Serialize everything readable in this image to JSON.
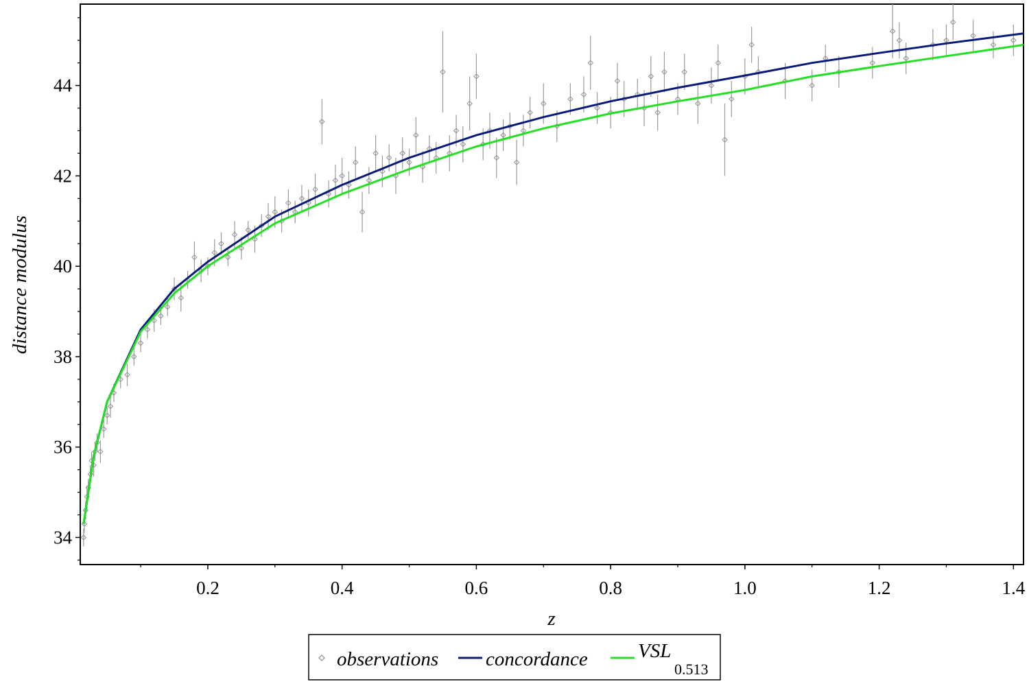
{
  "chart_data": {
    "type": "scatter",
    "title": "",
    "xlabel": "z",
    "ylabel": "distance modulus",
    "xlim": [
      0.01,
      1.415
    ],
    "ylim": [
      33.4,
      45.8
    ],
    "x_ticks": [
      0.2,
      0.4,
      0.6,
      0.8,
      1.0,
      1.2,
      1.4
    ],
    "x_tick_labels": [
      "0.2",
      "0.4",
      "0.6",
      "0.8",
      "1.0",
      "1.2",
      "1.4"
    ],
    "y_ticks": [
      34,
      36,
      38,
      40,
      42,
      44
    ],
    "y_tick_labels": [
      "34",
      "36",
      "38",
      "40",
      "42",
      "44"
    ],
    "grid": false,
    "legend_position": "bottom-center",
    "legend": {
      "observations": "observations",
      "concordance": "concordance",
      "vsl_main": "VSL",
      "vsl_sub": "0.513"
    },
    "colors": {
      "observations": "#999999",
      "concordance": "#0a1a78",
      "vsl": "#22e022"
    },
    "series": [
      {
        "name": "observations",
        "kind": "points-with-error-bars",
        "points": [
          [
            0.015,
            34.0,
            0.2
          ],
          [
            0.016,
            34.3,
            0.2
          ],
          [
            0.018,
            34.6,
            0.2
          ],
          [
            0.02,
            34.9,
            0.25
          ],
          [
            0.022,
            35.1,
            0.2
          ],
          [
            0.025,
            35.4,
            0.2
          ],
          [
            0.027,
            35.7,
            0.2
          ],
          [
            0.03,
            35.6,
            0.25
          ],
          [
            0.032,
            35.9,
            0.2
          ],
          [
            0.035,
            36.1,
            0.2
          ],
          [
            0.04,
            35.9,
            0.25
          ],
          [
            0.045,
            36.4,
            0.2
          ],
          [
            0.05,
            36.7,
            0.2
          ],
          [
            0.055,
            36.9,
            0.25
          ],
          [
            0.06,
            37.2,
            0.2
          ],
          [
            0.07,
            37.5,
            0.2
          ],
          [
            0.08,
            37.6,
            0.25
          ],
          [
            0.09,
            38.0,
            0.2
          ],
          [
            0.1,
            38.3,
            0.2
          ],
          [
            0.11,
            38.6,
            0.2
          ],
          [
            0.12,
            38.8,
            0.25
          ],
          [
            0.13,
            38.9,
            0.2
          ],
          [
            0.14,
            39.1,
            0.2
          ],
          [
            0.15,
            39.5,
            0.25
          ],
          [
            0.16,
            39.3,
            0.3
          ],
          [
            0.17,
            39.7,
            0.2
          ],
          [
            0.18,
            40.2,
            0.35
          ],
          [
            0.19,
            39.9,
            0.25
          ],
          [
            0.2,
            40.0,
            0.2
          ],
          [
            0.21,
            40.3,
            0.3
          ],
          [
            0.22,
            40.5,
            0.25
          ],
          [
            0.23,
            40.2,
            0.2
          ],
          [
            0.24,
            40.7,
            0.3
          ],
          [
            0.25,
            40.4,
            0.25
          ],
          [
            0.26,
            40.8,
            0.2
          ],
          [
            0.27,
            40.6,
            0.3
          ],
          [
            0.28,
            40.9,
            0.25
          ],
          [
            0.29,
            41.1,
            0.3
          ],
          [
            0.3,
            41.2,
            0.35
          ],
          [
            0.31,
            41.0,
            0.25
          ],
          [
            0.32,
            41.4,
            0.3
          ],
          [
            0.33,
            41.2,
            0.25
          ],
          [
            0.34,
            41.5,
            0.3
          ],
          [
            0.35,
            41.4,
            0.3
          ],
          [
            0.36,
            41.7,
            0.35
          ],
          [
            0.37,
            43.2,
            0.5
          ],
          [
            0.38,
            41.6,
            0.3
          ],
          [
            0.39,
            41.9,
            0.35
          ],
          [
            0.4,
            42.0,
            0.4
          ],
          [
            0.41,
            41.8,
            0.3
          ],
          [
            0.42,
            42.3,
            0.35
          ],
          [
            0.43,
            41.2,
            0.45
          ],
          [
            0.44,
            41.9,
            0.3
          ],
          [
            0.45,
            42.5,
            0.4
          ],
          [
            0.46,
            42.1,
            0.35
          ],
          [
            0.47,
            42.4,
            0.3
          ],
          [
            0.48,
            42.0,
            0.4
          ],
          [
            0.49,
            42.5,
            0.35
          ],
          [
            0.5,
            42.3,
            0.3
          ],
          [
            0.51,
            42.9,
            0.4
          ],
          [
            0.52,
            42.2,
            0.35
          ],
          [
            0.53,
            42.6,
            0.3
          ],
          [
            0.54,
            42.4,
            0.35
          ],
          [
            0.55,
            44.3,
            0.9
          ],
          [
            0.56,
            42.5,
            0.4
          ],
          [
            0.57,
            43.0,
            0.35
          ],
          [
            0.58,
            42.7,
            0.4
          ],
          [
            0.59,
            43.6,
            0.6
          ],
          [
            0.6,
            44.2,
            0.5
          ],
          [
            0.61,
            42.7,
            0.35
          ],
          [
            0.62,
            43.0,
            0.4
          ],
          [
            0.63,
            42.4,
            0.45
          ],
          [
            0.64,
            42.9,
            0.35
          ],
          [
            0.65,
            43.1,
            0.3
          ],
          [
            0.66,
            42.3,
            0.5
          ],
          [
            0.67,
            43.0,
            0.35
          ],
          [
            0.68,
            43.4,
            0.35
          ],
          [
            0.7,
            43.6,
            0.45
          ],
          [
            0.72,
            43.1,
            0.35
          ],
          [
            0.74,
            43.7,
            0.35
          ],
          [
            0.76,
            43.8,
            0.4
          ],
          [
            0.77,
            44.5,
            0.6
          ],
          [
            0.78,
            43.5,
            0.35
          ],
          [
            0.8,
            43.4,
            0.35
          ],
          [
            0.81,
            44.1,
            0.4
          ],
          [
            0.82,
            43.7,
            0.4
          ],
          [
            0.84,
            43.8,
            0.35
          ],
          [
            0.85,
            43.5,
            0.4
          ],
          [
            0.86,
            44.2,
            0.45
          ],
          [
            0.87,
            43.4,
            0.4
          ],
          [
            0.88,
            44.3,
            0.45
          ],
          [
            0.9,
            43.7,
            0.35
          ],
          [
            0.91,
            44.3,
            0.4
          ],
          [
            0.93,
            43.6,
            0.45
          ],
          [
            0.95,
            44.0,
            0.4
          ],
          [
            0.96,
            44.5,
            0.4
          ],
          [
            0.97,
            42.8,
            0.8
          ],
          [
            0.98,
            43.7,
            0.4
          ],
          [
            1.0,
            44.2,
            0.4
          ],
          [
            1.01,
            44.9,
            0.4
          ],
          [
            1.02,
            44.3,
            0.35
          ],
          [
            1.06,
            44.1,
            0.4
          ],
          [
            1.1,
            44.0,
            0.35
          ],
          [
            1.12,
            44.6,
            0.3
          ],
          [
            1.14,
            44.3,
            0.35
          ],
          [
            1.19,
            44.5,
            0.35
          ],
          [
            1.22,
            45.2,
            0.6
          ],
          [
            1.23,
            45.0,
            0.4
          ],
          [
            1.24,
            44.6,
            0.35
          ],
          [
            1.28,
            44.9,
            0.35
          ],
          [
            1.3,
            45.0,
            0.35
          ],
          [
            1.31,
            45.4,
            0.4
          ],
          [
            1.34,
            45.1,
            0.35
          ],
          [
            1.37,
            44.9,
            0.3
          ],
          [
            1.4,
            45.0,
            0.35
          ]
        ]
      },
      {
        "name": "concordance",
        "kind": "line",
        "x": [
          0.015,
          0.03,
          0.05,
          0.1,
          0.15,
          0.2,
          0.3,
          0.4,
          0.5,
          0.6,
          0.7,
          0.8,
          0.9,
          1.0,
          1.1,
          1.2,
          1.3,
          1.415
        ],
        "y": [
          34.3,
          35.8,
          37.0,
          38.6,
          39.5,
          40.1,
          41.1,
          41.8,
          42.4,
          42.9,
          43.3,
          43.65,
          43.95,
          44.22,
          44.5,
          44.72,
          44.93,
          45.15
        ]
      },
      {
        "name": "VSL 0.513",
        "kind": "line",
        "x": [
          0.015,
          0.03,
          0.05,
          0.1,
          0.15,
          0.2,
          0.3,
          0.4,
          0.5,
          0.6,
          0.7,
          0.8,
          0.9,
          1.0,
          1.1,
          1.2,
          1.3,
          1.415
        ],
        "y": [
          34.3,
          35.8,
          37.0,
          38.55,
          39.4,
          40.0,
          40.95,
          41.6,
          42.15,
          42.65,
          43.05,
          43.38,
          43.65,
          43.9,
          44.2,
          44.43,
          44.65,
          44.9
        ]
      }
    ]
  }
}
